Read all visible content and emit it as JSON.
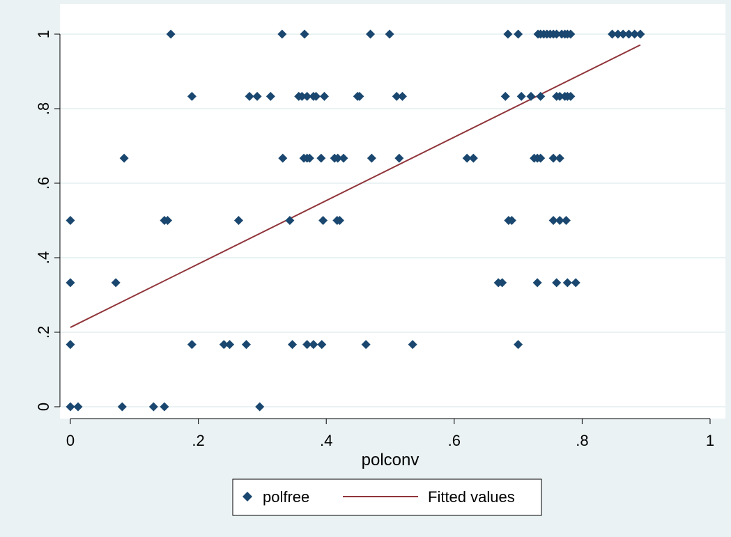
{
  "chart_data": {
    "type": "scatter",
    "title": "",
    "xlabel": "polconv",
    "ylabel": "",
    "xlim": [
      0,
      1
    ],
    "ylim": [
      0,
      1
    ],
    "grid": true,
    "legend_position": "bottom",
    "x_ticks": [
      0,
      0.2,
      0.4,
      0.6,
      0.8,
      1
    ],
    "x_tick_labels": [
      "0",
      ".2",
      ".4",
      ".6",
      ".8",
      "1"
    ],
    "y_ticks": [
      0,
      0.2,
      0.4,
      0.6,
      0.8,
      1
    ],
    "y_tick_labels": [
      "0",
      ".2",
      ".4",
      ".6",
      ".8",
      "1"
    ],
    "colors": {
      "points": "#1a476f",
      "line": "#90353b",
      "grid": "#eaf2f3",
      "plot_bg": "#ffffff",
      "outer_bg": "#eaf2f3"
    },
    "series": [
      {
        "name": "polfree",
        "kind": "scatter",
        "marker": "diamond",
        "points": [
          [
            0.157,
            1
          ],
          [
            0.331,
            1
          ],
          [
            0.366,
            1
          ],
          [
            0.469,
            1
          ],
          [
            0.499,
            1
          ],
          [
            0.684,
            1
          ],
          [
            0.7,
            1
          ],
          [
            0.731,
            1
          ],
          [
            0.735,
            1
          ],
          [
            0.74,
            1
          ],
          [
            0.745,
            1
          ],
          [
            0.75,
            1
          ],
          [
            0.755,
            1
          ],
          [
            0.76,
            1
          ],
          [
            0.768,
            1
          ],
          [
            0.773,
            1
          ],
          [
            0.777,
            1
          ],
          [
            0.782,
            1
          ],
          [
            0.847,
            1
          ],
          [
            0.856,
            1
          ],
          [
            0.864,
            1
          ],
          [
            0.873,
            1
          ],
          [
            0.882,
            1
          ],
          [
            0.891,
            1
          ],
          [
            0.19,
            0.833
          ],
          [
            0.28,
            0.833
          ],
          [
            0.292,
            0.833
          ],
          [
            0.313,
            0.833
          ],
          [
            0.357,
            0.833
          ],
          [
            0.362,
            0.833
          ],
          [
            0.37,
            0.833
          ],
          [
            0.38,
            0.833
          ],
          [
            0.384,
            0.833
          ],
          [
            0.397,
            0.833
          ],
          [
            0.449,
            0.833
          ],
          [
            0.452,
            0.833
          ],
          [
            0.51,
            0.833
          ],
          [
            0.519,
            0.833
          ],
          [
            0.68,
            0.833
          ],
          [
            0.705,
            0.833
          ],
          [
            0.72,
            0.833
          ],
          [
            0.735,
            0.833
          ],
          [
            0.76,
            0.833
          ],
          [
            0.765,
            0.833
          ],
          [
            0.773,
            0.833
          ],
          [
            0.777,
            0.833
          ],
          [
            0.782,
            0.833
          ],
          [
            0.084,
            0.667
          ],
          [
            0.332,
            0.667
          ],
          [
            0.365,
            0.667
          ],
          [
            0.37,
            0.667
          ],
          [
            0.374,
            0.667
          ],
          [
            0.392,
            0.667
          ],
          [
            0.413,
            0.667
          ],
          [
            0.418,
            0.667
          ],
          [
            0.427,
            0.667
          ],
          [
            0.471,
            0.667
          ],
          [
            0.514,
            0.667
          ],
          [
            0.62,
            0.667
          ],
          [
            0.63,
            0.667
          ],
          [
            0.725,
            0.667
          ],
          [
            0.73,
            0.667
          ],
          [
            0.735,
            0.667
          ],
          [
            0.755,
            0.667
          ],
          [
            0.765,
            0.667
          ],
          [
            0,
            0.5
          ],
          [
            0.147,
            0.5
          ],
          [
            0.152,
            0.5
          ],
          [
            0.263,
            0.5
          ],
          [
            0.343,
            0.5
          ],
          [
            0.395,
            0.5
          ],
          [
            0.417,
            0.5
          ],
          [
            0.421,
            0.5
          ],
          [
            0.685,
            0.5
          ],
          [
            0.69,
            0.5
          ],
          [
            0.755,
            0.5
          ],
          [
            0.765,
            0.5
          ],
          [
            0.775,
            0.5
          ],
          [
            0,
            0.333
          ],
          [
            0.071,
            0.333
          ],
          [
            0.669,
            0.333
          ],
          [
            0.675,
            0.333
          ],
          [
            0.73,
            0.333
          ],
          [
            0.76,
            0.333
          ],
          [
            0.777,
            0.333
          ],
          [
            0.79,
            0.333
          ],
          [
            0,
            0.167
          ],
          [
            0.19,
            0.167
          ],
          [
            0.24,
            0.167
          ],
          [
            0.249,
            0.167
          ],
          [
            0.275,
            0.167
          ],
          [
            0.347,
            0.167
          ],
          [
            0.37,
            0.167
          ],
          [
            0.38,
            0.167
          ],
          [
            0.393,
            0.167
          ],
          [
            0.462,
            0.167
          ],
          [
            0.535,
            0.167
          ],
          [
            0.7,
            0.167
          ],
          [
            0,
            0
          ],
          [
            0.012,
            0
          ],
          [
            0.081,
            0
          ],
          [
            0.13,
            0
          ],
          [
            0.147,
            0
          ],
          [
            0.296,
            0
          ]
        ]
      },
      {
        "name": "Fitted values",
        "kind": "line",
        "points": [
          [
            0,
            0.213
          ],
          [
            0.891,
            0.971
          ]
        ]
      }
    ],
    "legend": {
      "items": [
        {
          "label": "polfree",
          "symbol": "diamond"
        },
        {
          "label": "Fitted values",
          "symbol": "line"
        }
      ]
    }
  }
}
